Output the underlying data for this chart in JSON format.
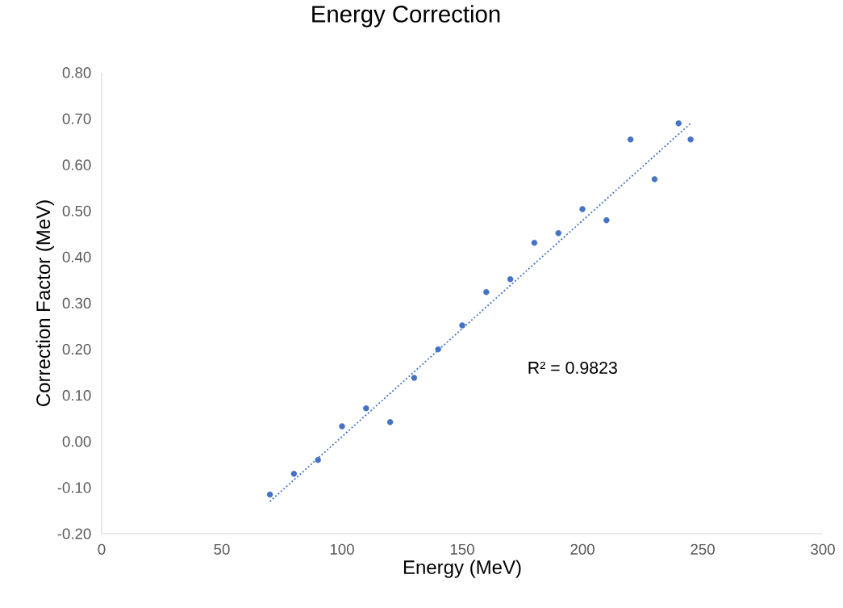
{
  "chart_data": {
    "type": "scatter",
    "title": "Energy Correction",
    "xlabel": "Energy (MeV)",
    "ylabel": "Correction Factor (MeV)",
    "annotations": [
      "R² = 0.9823"
    ],
    "series": [
      {
        "color": "#4472c4",
        "marker": "circle",
        "x": [
          70,
          80,
          90,
          100,
          110,
          120,
          130,
          140,
          150,
          160,
          170,
          180,
          190,
          200,
          210,
          220,
          230,
          240,
          245
        ],
        "values": [
          -0.115,
          -0.07,
          -0.04,
          0.033,
          0.072,
          0.042,
          0.138,
          0.2,
          0.252,
          0.324,
          0.352,
          0.431,
          0.452,
          0.504,
          0.48,
          0.655,
          0.569,
          0.69,
          0.655
        ]
      },
      {
        "type": "line",
        "color": "#4472c4",
        "line_style": "dotted",
        "x": [
          70,
          245
        ],
        "values": [
          -0.13,
          0.69
        ]
      }
    ],
    "xlim": [
      0,
      300
    ],
    "ylim": [
      -0.2,
      0.8
    ],
    "xticks": [
      0,
      50,
      100,
      150,
      200,
      250,
      300
    ],
    "yticks": [
      {
        "value": -0.2,
        "label": "-0.20"
      },
      {
        "value": -0.1,
        "label": "-0.10"
      },
      {
        "value": 0,
        "label": "0.00"
      },
      {
        "value": 0.1,
        "label": "0.10"
      },
      {
        "value": 0.2,
        "label": "0.20"
      },
      {
        "value": 0.3,
        "label": "0.30"
      },
      {
        "value": 0.4,
        "label": "0.40"
      },
      {
        "value": 0.5,
        "label": "0.50"
      },
      {
        "value": 0.6,
        "label": "0.60"
      },
      {
        "value": 0.7,
        "label": "0.70"
      },
      {
        "value": 0.8,
        "label": "0.80"
      }
    ]
  }
}
